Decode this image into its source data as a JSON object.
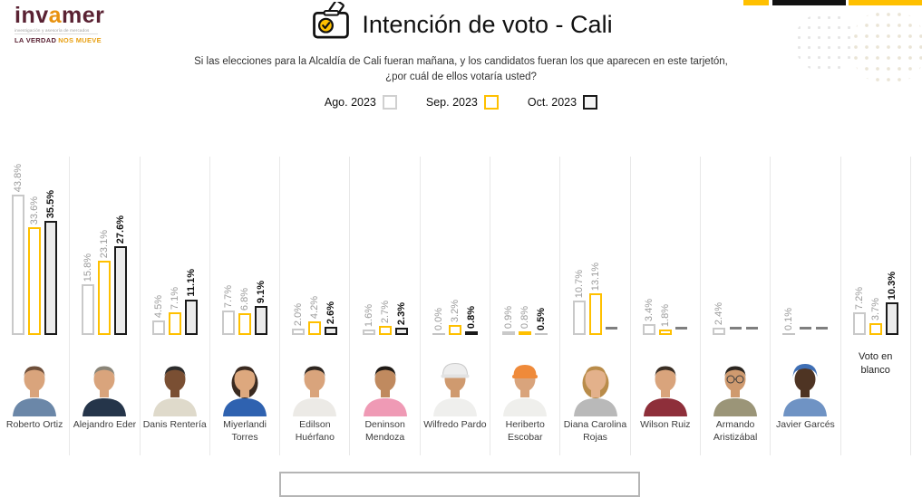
{
  "brand": {
    "logo_part1": "inv",
    "logo_accent_letter": "a",
    "logo_part2": "mer",
    "tagline": "investigación y asesoría de mercados",
    "slogan_dark": "LA VERDAD",
    "slogan_accent": "NOS MUEVE"
  },
  "header": {
    "title": "Intención de voto - Cali",
    "subtitle_line1": "Si las elecciones para la Alcaldía de Cali fueran mañana, y los candidatos fueran los que aparecen en este tarjetón,",
    "subtitle_line2": "¿por cuál de ellos votaría usted?"
  },
  "legend": [
    {
      "label": "Ago. 2023",
      "border": "#d0d0d0",
      "fill": "#ffffff"
    },
    {
      "label": "Sep. 2023",
      "border": "#ffc000",
      "fill": "#ffffff"
    },
    {
      "label": "Oct. 2023",
      "border": "#1a1a1a",
      "fill": "#f5f5f5"
    }
  ],
  "chart_data": {
    "type": "bar",
    "title": "Intención de voto - Cali",
    "unit": "%",
    "ylim": [
      0,
      45
    ],
    "value_labels": true,
    "missing_shown_as": "dash",
    "categories": [
      "Roberto Ortiz",
      "Alejandro Eder",
      "Danis Rentería",
      "Miyerlandi Torres",
      "Edilson Huérfano",
      "Deninson Mendoza",
      "Wilfredo Pardo",
      "Heriberto Escobar",
      "Diana Carolina Rojas",
      "Wilson Ruiz",
      "Armando Aristizábal",
      "Javier Garcés",
      "Voto en blanco"
    ],
    "series": [
      {
        "name": "Ago. 2023",
        "values": [
          43.8,
          15.8,
          4.5,
          7.7,
          2.0,
          1.6,
          0.0,
          0.9,
          10.7,
          3.4,
          2.4,
          0.1,
          7.2
        ]
      },
      {
        "name": "Sep. 2023",
        "values": [
          33.6,
          23.1,
          7.1,
          6.8,
          4.2,
          2.7,
          3.2,
          0.8,
          13.1,
          1.8,
          null,
          null,
          3.7
        ]
      },
      {
        "name": "Oct. 2023",
        "values": [
          35.5,
          27.6,
          11.1,
          9.1,
          2.6,
          2.3,
          0.8,
          0.5,
          null,
          null,
          null,
          null,
          10.3
        ]
      }
    ]
  },
  "candidates_photos": [
    {
      "skin": "#d9a47c",
      "hair": "#6e4f3a",
      "shirt": "#6b87a8",
      "style": "short"
    },
    {
      "skin": "#d9a47c",
      "hair": "#8a8578",
      "shirt": "#25354a",
      "style": "short"
    },
    {
      "skin": "#7a4f33",
      "hair": "#2c2c2c",
      "shirt": "#dfdacb",
      "style": "short"
    },
    {
      "skin": "#dda87e",
      "hair": "#3a2a20",
      "shirt": "#2f62b0",
      "style": "long"
    },
    {
      "skin": "#d9a47c",
      "hair": "#2e2620",
      "shirt": "#eceae6",
      "style": "short"
    },
    {
      "skin": "#c08a5f",
      "hair": "#1f1a16",
      "shirt": "#ef9ab5",
      "style": "short"
    },
    {
      "skin": "#cf9a6f",
      "hair": "#9a9a9a",
      "shirt": "#efefed",
      "style": "short",
      "hat": "helmet",
      "hat_color": "#ededed"
    },
    {
      "skin": "#d9a47c",
      "hair": "#6e5a44",
      "shirt": "#efefec",
      "style": "short",
      "hat": "cap",
      "hat_color": "#ef8a3a"
    },
    {
      "skin": "#e3b18b",
      "hair": "#b98c4a",
      "shirt": "#b9b9b9",
      "style": "long"
    },
    {
      "skin": "#d9a47c",
      "hair": "#3a2e24",
      "shirt": "#8e2f3a",
      "style": "short"
    },
    {
      "skin": "#cf9a6f",
      "hair": "#2b2620",
      "shirt": "#9b9578",
      "style": "short",
      "glasses": true
    },
    {
      "skin": "#4e3423",
      "hair": "#241a12",
      "shirt": "#6f93c4",
      "style": "short",
      "hat": "wrap",
      "hat_color": "#3f6fb5"
    }
  ],
  "colors": {
    "accent_yellow": "#ffc000",
    "accent_black": "#111111",
    "brand_maroon": "#5a2233",
    "brand_orange": "#e8920f",
    "bar_ago_border": "#c9c9c9",
    "bar_sep_border": "#ffc000",
    "bar_oct_border": "#1a1a1a",
    "bar_oct_fill": "#ebebeb",
    "value_label_gray": "#9b9b9b",
    "dash_gray": "#7f7f7f"
  }
}
